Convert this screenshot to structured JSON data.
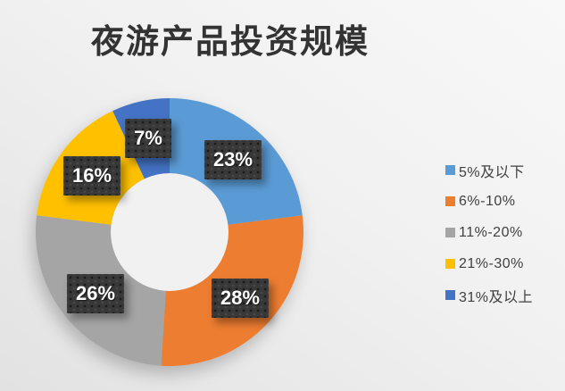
{
  "title": "夜游产品投资规模",
  "chart_data": {
    "type": "pie",
    "subtype": "donut",
    "title": "夜游产品投资规模",
    "categories": [
      "5%及以下",
      "6%-10%",
      "11%-20%",
      "21%-30%",
      "31%及以上"
    ],
    "values": [
      23,
      28,
      26,
      16,
      7
    ],
    "data_labels": [
      "23%",
      "28%",
      "26%",
      "16%",
      "7%"
    ],
    "colors": [
      "#5B9BD5",
      "#ED7D31",
      "#A5A5A5",
      "#FFC000",
      "#4472C4"
    ],
    "start_angle_deg": 0,
    "direction": "clockwise",
    "legend_position": "right",
    "hole_color": "#f1f1f1",
    "label_box_color": "#383838",
    "label_text_color": "#ffffff",
    "background_color": "#ededed",
    "title_color": "#333333"
  },
  "legend": {
    "items": [
      {
        "label": "5%及以下",
        "color": "#5B9BD5"
      },
      {
        "label": "6%-10%",
        "color": "#ED7D31"
      },
      {
        "label": "11%-20%",
        "color": "#A5A5A5"
      },
      {
        "label": "21%-30%",
        "color": "#FFC000"
      },
      {
        "label": "31%及以上",
        "color": "#4472C4"
      }
    ]
  }
}
